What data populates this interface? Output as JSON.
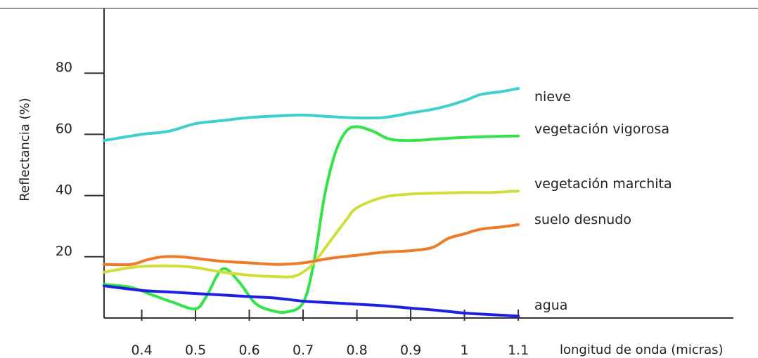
{
  "chart_data": {
    "type": "line",
    "title": "",
    "xlabel": "longitud de onda (micras)",
    "ylabel": "Reflectancia (%)",
    "xlim": [
      0.33,
      1.5
    ],
    "ylim": [
      0,
      100
    ],
    "x_ticks": [
      0.4,
      0.5,
      0.6,
      0.7,
      0.8,
      0.9,
      1,
      1.1
    ],
    "x_tick_labels": [
      "0.4",
      "0.5",
      "0.6",
      "0.7",
      "0.8",
      "0.9",
      "1",
      "1.1"
    ],
    "y_ticks": [
      20,
      40,
      60,
      80
    ],
    "y_tick_labels": [
      "20",
      "40",
      "60",
      "80"
    ],
    "grid": false,
    "legend": "none",
    "series": [
      {
        "name": "nieve",
        "color": "#3ecfcf",
        "x": [
          0.33,
          0.4,
          0.45,
          0.5,
          0.55,
          0.6,
          0.65,
          0.7,
          0.75,
          0.8,
          0.85,
          0.9,
          0.95,
          1.0,
          1.03,
          1.07,
          1.1
        ],
        "y": [
          58,
          60,
          61,
          63.5,
          64.5,
          65.5,
          66,
          66.3,
          65.8,
          65.4,
          65.5,
          67,
          68.5,
          71,
          73,
          74,
          75
        ]
      },
      {
        "name": "vegetación vigorosa",
        "color": "#33e34a",
        "x": [
          0.33,
          0.38,
          0.42,
          0.46,
          0.5,
          0.52,
          0.55,
          0.58,
          0.61,
          0.64,
          0.67,
          0.7,
          0.72,
          0.74,
          0.76,
          0.78,
          0.8,
          0.83,
          0.86,
          0.9,
          0.95,
          1.0,
          1.05,
          1.1
        ],
        "y": [
          11,
          10,
          7.5,
          5,
          3,
          7,
          16,
          12,
          5,
          2.5,
          2,
          5,
          18,
          40,
          54,
          61,
          62.5,
          61,
          58.5,
          58,
          58.5,
          59,
          59.3,
          59.5
        ]
      },
      {
        "name": "vegetación marchita",
        "color": "#d0de3a",
        "x": [
          0.33,
          0.38,
          0.42,
          0.46,
          0.5,
          0.55,
          0.6,
          0.65,
          0.68,
          0.7,
          0.72,
          0.75,
          0.78,
          0.8,
          0.85,
          0.9,
          0.95,
          1.0,
          1.05,
          1.1
        ],
        "y": [
          15,
          16.5,
          17,
          17,
          16.5,
          15,
          14,
          13.5,
          13.5,
          15,
          18,
          25,
          32,
          36,
          39.5,
          40.5,
          40.8,
          41,
          41,
          41.5
        ]
      },
      {
        "name": "suelo desnudo",
        "color": "#ee7a2a",
        "x": [
          0.33,
          0.38,
          0.41,
          0.44,
          0.47,
          0.5,
          0.55,
          0.6,
          0.65,
          0.7,
          0.75,
          0.8,
          0.85,
          0.9,
          0.94,
          0.97,
          1.0,
          1.03,
          1.07,
          1.1
        ],
        "y": [
          17.5,
          17.5,
          19,
          20,
          20,
          19.5,
          18.5,
          18,
          17.5,
          18,
          19.5,
          20.5,
          21.5,
          22,
          23,
          26,
          27.5,
          29,
          29.8,
          30.5
        ]
      },
      {
        "name": "agua",
        "color": "#2020e0",
        "x": [
          0.33,
          0.4,
          0.45,
          0.5,
          0.55,
          0.6,
          0.65,
          0.7,
          0.75,
          0.8,
          0.85,
          0.9,
          0.95,
          1.0,
          1.05,
          1.1
        ],
        "y": [
          10.5,
          9,
          8.5,
          8,
          7.5,
          7,
          6.5,
          5.5,
          5,
          4.5,
          4,
          3.2,
          2.5,
          1.6,
          1.1,
          0.6
        ]
      }
    ]
  }
}
